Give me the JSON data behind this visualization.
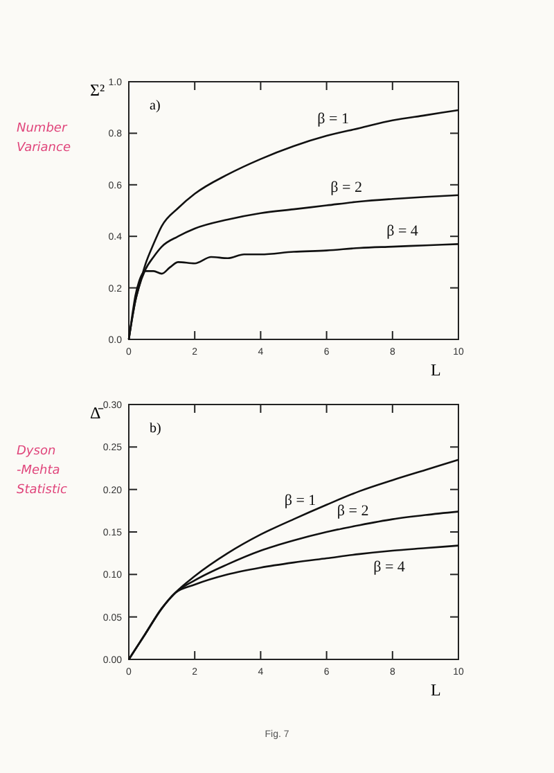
{
  "chart_data": [
    {
      "type": "line",
      "ylabel": "Σ²",
      "xlabel": "L",
      "annotations": [
        "a)",
        "Number Variance"
      ],
      "xlim": [
        0,
        10
      ],
      "ylim": [
        0,
        1
      ],
      "xticks": [
        0,
        2,
        4,
        6,
        8,
        10
      ],
      "yticks": [
        {
          "value": 0,
          "label": "0.0"
        },
        {
          "value": 0.2,
          "label": "0.2"
        },
        {
          "value": 0.4,
          "label": "0.4"
        },
        {
          "value": 0.6,
          "label": "0.6"
        },
        {
          "value": 0.8,
          "label": "0.8"
        },
        {
          "value": 1,
          "label": "1.0"
        }
      ],
      "grid": false,
      "legend": false,
      "line_style": "solid",
      "marker": "none",
      "series": [
        {
          "name": "β = 1",
          "color": "#111111",
          "x": [
            0,
            0.1,
            0.2,
            0.3,
            0.5,
            0.75,
            1,
            1.5,
            2,
            3,
            4,
            5,
            6,
            7,
            8,
            9,
            10
          ],
          "values": [
            0,
            0.08,
            0.15,
            0.2,
            0.29,
            0.37,
            0.44,
            0.51,
            0.565,
            0.64,
            0.7,
            0.75,
            0.79,
            0.82,
            0.85,
            0.87,
            0.89
          ]
        },
        {
          "name": "β = 2",
          "color": "#111111",
          "x": [
            0,
            0.1,
            0.2,
            0.3,
            0.5,
            0.75,
            1,
            1.5,
            2,
            3,
            4,
            5,
            6,
            7,
            8,
            9,
            10
          ],
          "values": [
            0,
            0.08,
            0.15,
            0.2,
            0.27,
            0.32,
            0.36,
            0.4,
            0.43,
            0.465,
            0.49,
            0.505,
            0.52,
            0.535,
            0.545,
            0.553,
            0.56
          ]
        },
        {
          "name": "β = 4",
          "color": "#111111",
          "x": [
            0,
            0.1,
            0.2,
            0.3,
            0.5,
            0.75,
            1,
            1.25,
            1.5,
            2,
            2.5,
            3,
            3.5,
            4,
            5,
            6,
            7,
            8,
            9,
            10
          ],
          "values": [
            0,
            0.09,
            0.17,
            0.22,
            0.265,
            0.265,
            0.255,
            0.28,
            0.3,
            0.295,
            0.32,
            0.315,
            0.33,
            0.33,
            0.34,
            0.345,
            0.355,
            0.36,
            0.365,
            0.37
          ]
        }
      ]
    },
    {
      "type": "line",
      "ylabel": "Δ̄",
      "xlabel": "L",
      "annotations": [
        "b)",
        "Dyson -Mehta Statistic",
        "Fig. 7"
      ],
      "xlim": [
        0,
        10
      ],
      "ylim": [
        0,
        0.3
      ],
      "xticks": [
        0,
        2,
        4,
        6,
        8,
        10
      ],
      "yticks": [
        {
          "value": 0,
          "label": "0.00"
        },
        {
          "value": 0.05,
          "label": "0.05"
        },
        {
          "value": 0.1,
          "label": "0.10"
        },
        {
          "value": 0.15,
          "label": "0.15"
        },
        {
          "value": 0.2,
          "label": "0.20"
        },
        {
          "value": 0.25,
          "label": "0.25"
        },
        {
          "value": 0.3,
          "label": "0.30"
        }
      ],
      "grid": false,
      "legend": false,
      "line_style": "solid",
      "marker": "none",
      "series": [
        {
          "name": "β = 1",
          "color": "#111111",
          "x": [
            0,
            0.5,
            1,
            1.4,
            2,
            3,
            4,
            5,
            6,
            7,
            8,
            9,
            10
          ],
          "values": [
            0,
            0.03,
            0.06,
            0.078,
            0.098,
            0.125,
            0.147,
            0.165,
            0.182,
            0.198,
            0.211,
            0.223,
            0.235
          ]
        },
        {
          "name": "β = 2",
          "color": "#111111",
          "x": [
            0,
            0.5,
            1,
            1.4,
            2,
            3,
            4,
            5,
            6,
            7,
            8,
            9,
            10
          ],
          "values": [
            0,
            0.03,
            0.06,
            0.078,
            0.093,
            0.112,
            0.128,
            0.14,
            0.15,
            0.158,
            0.165,
            0.17,
            0.174
          ]
        },
        {
          "name": "β = 4",
          "color": "#111111",
          "x": [
            0,
            0.5,
            1,
            1.4,
            2,
            3,
            4,
            5,
            6,
            7,
            8,
            9,
            10
          ],
          "values": [
            0,
            0.03,
            0.06,
            0.078,
            0.088,
            0.1,
            0.108,
            0.114,
            0.119,
            0.124,
            0.128,
            0.131,
            0.134
          ]
        }
      ]
    }
  ]
}
